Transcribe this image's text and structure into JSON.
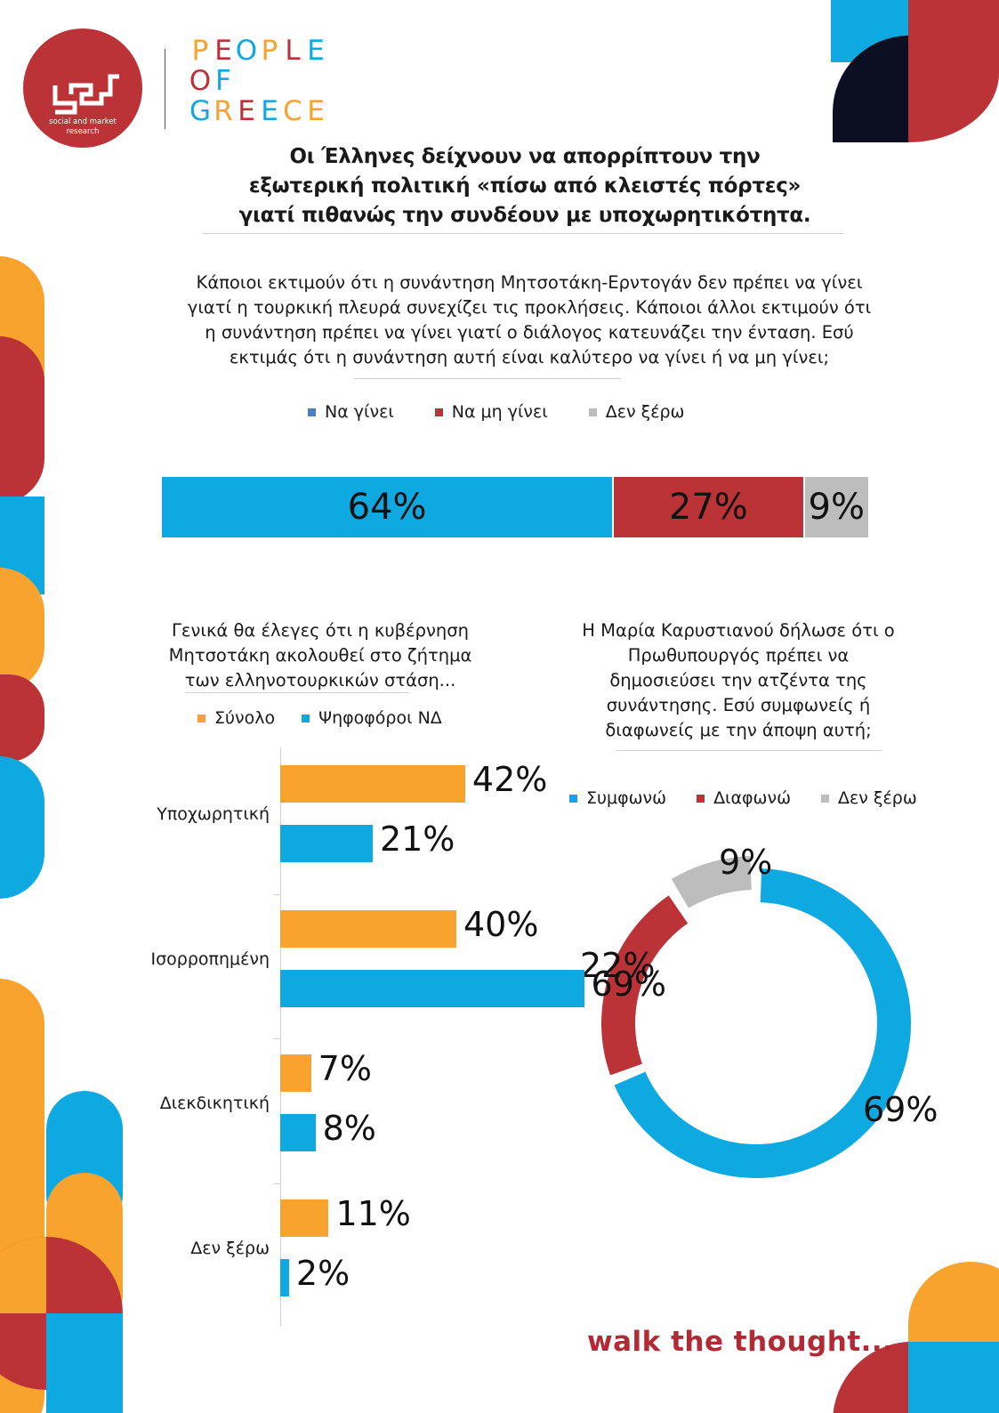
{
  "brand": {
    "logo_lines": [
      "social and market",
      "research"
    ],
    "wordmark": [
      "PEOPLE",
      "OF",
      "GREECE"
    ],
    "tagline": "walk the thought...",
    "colors": {
      "blue": "#0fa9e1",
      "red": "#bb3237",
      "orange": "#f7a32e",
      "grey": "#bdbdbd",
      "navy": "#0c0f22"
    }
  },
  "title": [
    "Οι Έλληνες δείχνουν να απορρίπτουν την",
    "εξωτερική πολιτική «πίσω από κλειστές πόρτες»",
    "γιατί πιθανώς την συνδέουν με υποχωρητικότητα."
  ],
  "question1": [
    "Κάποιοι εκτιμούν ότι η συνάντηση Μητσοτάκη-Ερντογάν δεν πρέπει να γίνει",
    "γιατί η τουρκική πλευρά συνεχίζει τις προκλήσεις. Κάποιοι άλλοι εκτιμούν ότι",
    "η συνάντηση πρέπει να γίνει γιατί ο διάλογος κατευνάζει την ένταση. Εσύ",
    "εκτιμάς ότι η συνάντηση αυτή είναι καλύτερο να γίνει ή να μη γίνει;"
  ],
  "question2": [
    "Γενικά θα έλεγες ότι η κυβέρνηση",
    "Μητσοτάκη ακολουθεί στο ζήτημα",
    "των ελληνοτουρκικών στάση..."
  ],
  "question3": [
    "Η Μαρία Καρυστιανού δήλωσε ότι ο",
    "Πρωθυπουργός πρέπει να",
    "δημοσιεύσει την ατζέντα της",
    "συνάντησης. Εσύ συμφωνείς ή",
    "διαφωνείς με την άποψη αυτή;"
  ],
  "chart_data": [
    {
      "type": "bar",
      "orientation": "horizontal-stacked",
      "series": [
        {
          "name": "Να γίνει",
          "value": 64,
          "label": "64%",
          "color": "#0fa9e1",
          "legend_color": "#4a7fc0"
        },
        {
          "name": "Να μη γίνει",
          "value": 27,
          "label": "27%",
          "color": "#bb3237",
          "legend_color": "#bb3237"
        },
        {
          "name": "Δεν ξέρω",
          "value": 9,
          "label": "9%",
          "color": "#bdbdbd",
          "legend_color": "#bdbdbd"
        }
      ],
      "xlim": [
        0,
        100
      ]
    },
    {
      "type": "bar",
      "orientation": "horizontal-grouped",
      "categories": [
        "Υποχωρητική",
        "Ισορροπημένη",
        "Διεκδικητική",
        "Δεν ξέρω"
      ],
      "series": [
        {
          "name": "Σύνολο",
          "values": [
            42,
            40,
            7,
            11
          ],
          "labels": [
            "42%",
            "40%",
            "7%",
            "11%"
          ],
          "color": "#f7a32e"
        },
        {
          "name": "Ψηφοφόροι ΝΔ",
          "values": [
            21,
            69,
            8,
            2
          ],
          "labels": [
            "21%",
            "69%",
            "8%",
            "2%"
          ],
          "color": "#0fa9e1"
        }
      ],
      "xlim": [
        0,
        100
      ]
    },
    {
      "type": "pie",
      "style": "donut",
      "series": [
        {
          "name": "Συμφωνώ",
          "value": 69,
          "label": "69%",
          "color": "#0fa9e1"
        },
        {
          "name": "Διαφωνώ",
          "value": 22,
          "label": "22%",
          "color": "#bb3237"
        },
        {
          "name": "Δεν ξέρω",
          "value": 9,
          "label": "9%",
          "color": "#bdbdbd"
        }
      ]
    }
  ]
}
